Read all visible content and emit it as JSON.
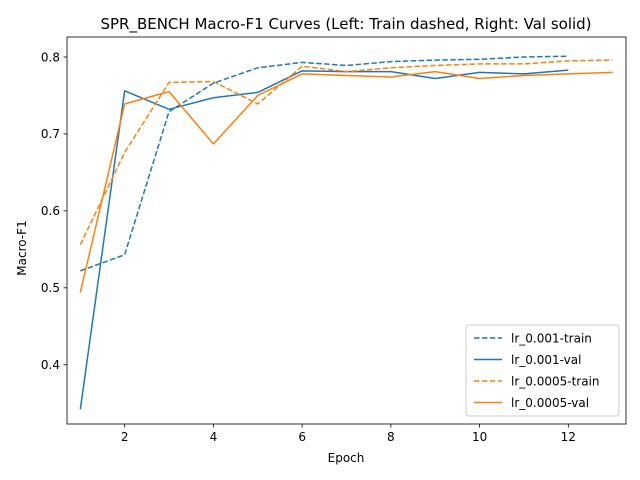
{
  "chart_data": {
    "type": "line",
    "title": "SPR_BENCH Macro-F1 Curves (Left: Train dashed, Right: Val solid)",
    "xlabel": "Epoch",
    "ylabel": "Macro-F1",
    "xlim": [
      0.7,
      13.3
    ],
    "ylim": [
      0.323,
      0.826
    ],
    "xticks": [
      2,
      4,
      6,
      8,
      10,
      12
    ],
    "yticks": [
      0.4,
      0.5,
      0.6,
      0.7,
      0.8
    ],
    "xtick_labels": [
      "2",
      "4",
      "6",
      "8",
      "10",
      "12"
    ],
    "ytick_labels": [
      "0.4",
      "0.5",
      "0.6",
      "0.7",
      "0.8"
    ],
    "grid": false,
    "legend_position": "lower-right",
    "series": [
      {
        "name": "lr_0.001-train",
        "color": "#1f77b4",
        "style": "dashed",
        "x": [
          1,
          2,
          3,
          4,
          5,
          6,
          7,
          8,
          9,
          10,
          11,
          12
        ],
        "y": [
          0.522,
          0.543,
          0.729,
          0.766,
          0.786,
          0.793,
          0.789,
          0.794,
          0.796,
          0.797,
          0.8,
          0.801
        ]
      },
      {
        "name": "lr_0.001-val",
        "color": "#1f77b4",
        "style": "solid",
        "x": [
          1,
          2,
          3,
          4,
          5,
          6,
          7,
          8,
          9,
          10,
          11,
          12
        ],
        "y": [
          0.342,
          0.756,
          0.732,
          0.747,
          0.754,
          0.782,
          0.781,
          0.781,
          0.772,
          0.78,
          0.778,
          0.783
        ]
      },
      {
        "name": "lr_0.0005-train",
        "color": "#ff7f0e",
        "style": "dashed",
        "x": [
          1,
          2,
          3,
          4,
          5,
          6,
          7,
          8,
          9,
          10,
          11,
          12,
          13
        ],
        "y": [
          0.556,
          0.676,
          0.767,
          0.768,
          0.739,
          0.788,
          0.781,
          0.786,
          0.789,
          0.791,
          0.791,
          0.795,
          0.796
        ]
      },
      {
        "name": "lr_0.0005-val",
        "color": "#ff7f0e",
        "style": "solid",
        "x": [
          1,
          2,
          3,
          4,
          5,
          6,
          7,
          8,
          9,
          10,
          11,
          12,
          13
        ],
        "y": [
          0.494,
          0.739,
          0.755,
          0.687,
          0.75,
          0.778,
          0.776,
          0.774,
          0.781,
          0.772,
          0.776,
          0.778,
          0.78
        ]
      }
    ]
  }
}
